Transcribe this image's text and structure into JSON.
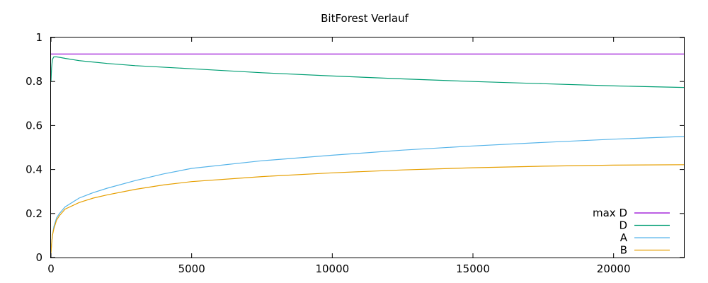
{
  "chart_data": {
    "type": "line",
    "title": "BitForest Verlauf",
    "xlabel": "",
    "ylabel": "",
    "xlim": [
      0,
      22500
    ],
    "ylim": [
      0,
      1
    ],
    "x_ticks": [
      0,
      5000,
      10000,
      15000,
      20000
    ],
    "y_ticks": [
      0,
      0.2,
      0.4,
      0.6,
      0.8,
      1
    ],
    "grid": false,
    "legend_position": "bottom-right",
    "series": [
      {
        "name": "max D",
        "color": "#9400d3",
        "x": [
          0,
          22500
        ],
        "y": [
          0.925,
          0.925
        ]
      },
      {
        "name": "D",
        "color": "#009e73",
        "x": [
          0,
          20,
          50,
          100,
          200,
          300,
          500,
          1000,
          2000,
          3000,
          5000,
          7500,
          10000,
          12500,
          15000,
          17500,
          20000,
          22500
        ],
        "y": [
          0.8,
          0.86,
          0.9,
          0.912,
          0.912,
          0.91,
          0.905,
          0.895,
          0.882,
          0.872,
          0.858,
          0.84,
          0.825,
          0.812,
          0.8,
          0.79,
          0.78,
          0.773
        ]
      },
      {
        "name": "A",
        "color": "#56b4e9",
        "x": [
          0,
          20,
          50,
          100,
          200,
          300,
          500,
          1000,
          1500,
          2000,
          3000,
          4000,
          5000,
          7500,
          10000,
          12500,
          15000,
          17500,
          20000,
          22500
        ],
        "y": [
          0.02,
          0.06,
          0.1,
          0.14,
          0.18,
          0.2,
          0.23,
          0.27,
          0.295,
          0.315,
          0.35,
          0.38,
          0.405,
          0.44,
          0.465,
          0.488,
          0.507,
          0.523,
          0.538,
          0.55
        ]
      },
      {
        "name": "B",
        "color": "#e69f00",
        "x": [
          0,
          20,
          50,
          100,
          200,
          300,
          500,
          1000,
          1500,
          2000,
          3000,
          4000,
          5000,
          7500,
          10000,
          12500,
          15000,
          17500,
          20000,
          22500
        ],
        "y": [
          0.02,
          0.06,
          0.1,
          0.13,
          0.17,
          0.19,
          0.22,
          0.25,
          0.27,
          0.285,
          0.31,
          0.33,
          0.345,
          0.368,
          0.385,
          0.398,
          0.408,
          0.415,
          0.42,
          0.422
        ]
      }
    ]
  }
}
